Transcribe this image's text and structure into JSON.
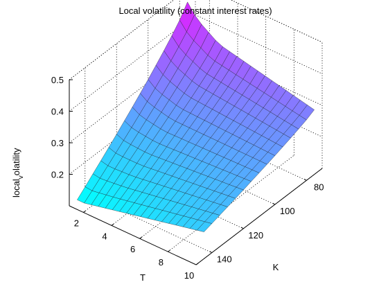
{
  "chart_data": {
    "type": "surface",
    "title": "Local volatility (constant interest rates)",
    "xlabel": "T",
    "ylabel": "K",
    "zlabel_main": "local",
    "zlabel_sub": "v",
    "zlabel_tail": "olatility",
    "x_ticks": [
      2,
      4,
      6,
      8,
      10
    ],
    "y_ticks": [
      80,
      100,
      120,
      140
    ],
    "z_ticks": [
      0.2,
      0.3,
      0.4,
      0.5
    ],
    "x_range": [
      1,
      10
    ],
    "y_range": [
      70,
      150
    ],
    "z_range": [
      0.1,
      0.5
    ],
    "grid": true,
    "colormap": "cool",
    "colors": {
      "low": "#00ffff",
      "high": "#ff00ff",
      "edge": "#000000"
    },
    "surface": {
      "T": [
        1,
        1.5,
        2,
        2.5,
        3,
        3.5,
        4,
        4.5,
        5,
        5.5,
        6,
        6.5,
        7,
        7.5,
        8,
        8.5,
        9,
        9.5,
        10
      ],
      "K": [
        75,
        80,
        85,
        90,
        95,
        100,
        105,
        110,
        115,
        120,
        125,
        130,
        135,
        140,
        145
      ],
      "z_at_Kmin": [
        0.46,
        0.43,
        0.41,
        0.395,
        0.38,
        0.37,
        0.365,
        0.36,
        0.355,
        0.35,
        0.345,
        0.34,
        0.335,
        0.33,
        0.325,
        0.32,
        0.315,
        0.31,
        0.305
      ],
      "z_at_Kmax": [
        0.1,
        0.1,
        0.105,
        0.11,
        0.115,
        0.12,
        0.125,
        0.13,
        0.135,
        0.14,
        0.145,
        0.15,
        0.155,
        0.16,
        0.165,
        0.17,
        0.175,
        0.18,
        0.185
      ]
    }
  }
}
